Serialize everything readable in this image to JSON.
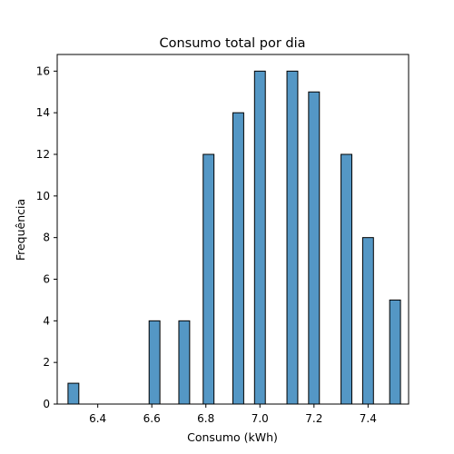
{
  "chart_data": {
    "type": "bar",
    "title": "Consumo total por dia",
    "xlabel": "Consumo (kWh)",
    "ylabel": "Frequência",
    "bars": [
      {
        "x": 6.31,
        "value": 1
      },
      {
        "x": 6.61,
        "value": 4
      },
      {
        "x": 6.72,
        "value": 4
      },
      {
        "x": 6.81,
        "value": 12
      },
      {
        "x": 6.92,
        "value": 14
      },
      {
        "x": 7.0,
        "value": 16
      },
      {
        "x": 7.12,
        "value": 16
      },
      {
        "x": 7.2,
        "value": 15
      },
      {
        "x": 7.32,
        "value": 12
      },
      {
        "x": 7.4,
        "value": 8
      },
      {
        "x": 7.5,
        "value": 5
      }
    ],
    "bar_width": 0.04,
    "xlim": [
      6.25,
      7.55
    ],
    "ylim": [
      0,
      16.8
    ],
    "xticks": [
      6.4,
      6.6,
      6.8,
      7.0,
      7.2,
      7.4
    ],
    "xtick_labels": [
      "6.4",
      "6.6",
      "6.8",
      "7.0",
      "7.2",
      "7.4"
    ],
    "yticks": [
      0,
      2,
      4,
      6,
      8,
      10,
      12,
      14,
      16
    ],
    "ytick_labels": [
      "0",
      "2",
      "4",
      "6",
      "8",
      "10",
      "12",
      "14",
      "16"
    ],
    "grid": false,
    "colors": {
      "bar_fill": "#5497c5",
      "bar_edge": "#000000"
    }
  }
}
